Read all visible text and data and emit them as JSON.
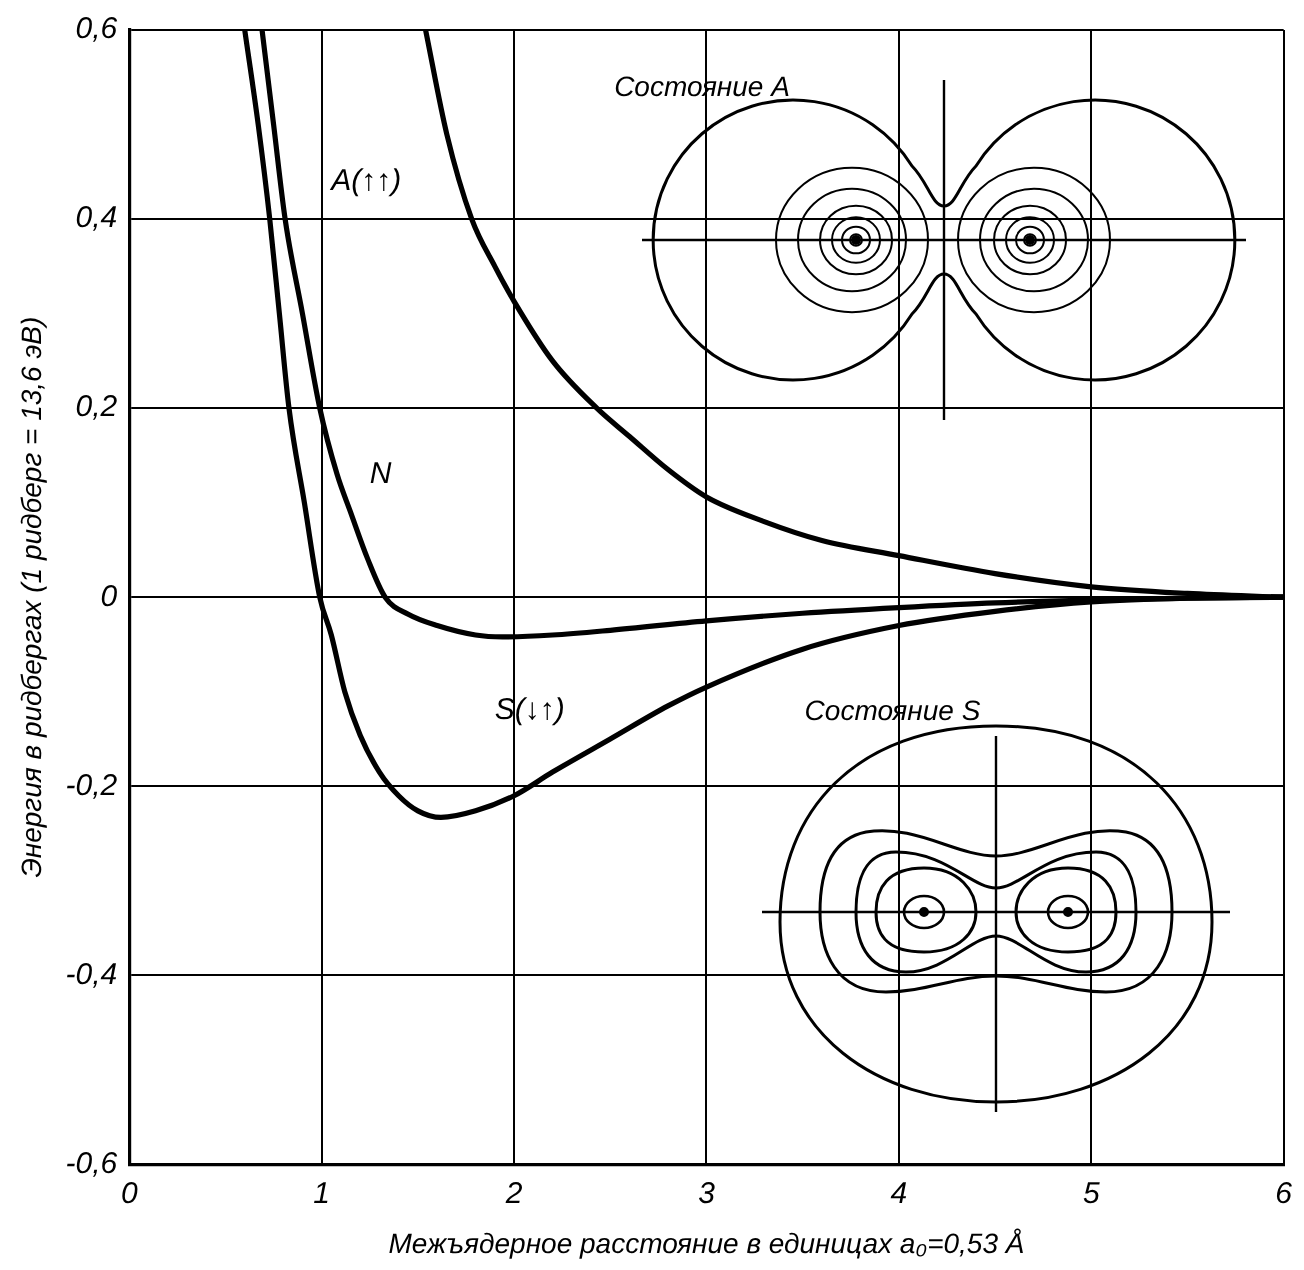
{
  "chart_data": {
    "type": "line",
    "xlabel": "Межъядерное расстояние в единицах a₀=0,53 Å",
    "ylabel": "Энергия в ридбергах (1 ридберг = 13,6 эВ)",
    "xlim": [
      0,
      6
    ],
    "xticks": [
      0,
      1,
      2,
      3,
      4,
      5,
      6
    ],
    "ylim": [
      -0.6,
      0.6
    ],
    "yticks": [
      {
        "value": -0.6,
        "label": "-0,6"
      },
      {
        "value": -0.4,
        "label": "-0,4"
      },
      {
        "value": -0.2,
        "label": "-0,2"
      },
      0,
      {
        "value": 0.2,
        "label": "0,2"
      },
      {
        "value": 0.4,
        "label": "0,4"
      },
      {
        "value": 0.6,
        "label": "0,6"
      }
    ],
    "grid": true,
    "legend": false,
    "marker": "none",
    "line_style": "solid",
    "annotations": [
      "Состояние A",
      "Состояние S"
    ],
    "series": [
      {
        "name": "A(↑↑)",
        "color": "#000000",
        "x": [
          1.54,
          1.65,
          1.78,
          1.9,
          2,
          2.2,
          2.43,
          2.6,
          2.8,
          3,
          3.3,
          3.6,
          4,
          4.5,
          5,
          5.5,
          6
        ],
        "values": [
          0.6,
          0.49,
          0.4,
          0.35,
          0.313,
          0.25,
          0.2,
          0.17,
          0.135,
          0.106,
          0.08,
          0.06,
          0.044,
          0.025,
          0.011,
          0.004,
          0
        ]
      },
      {
        "name": "N",
        "color": "#000000",
        "x": [
          0.69,
          0.75,
          0.81,
          0.9,
          0.99,
          1.08,
          1.15,
          1.24,
          1.33,
          1.45,
          1.6,
          1.8,
          1.94,
          2.2,
          2.5,
          3,
          3.5,
          4,
          4.5,
          5,
          5.5,
          6
        ],
        "values": [
          0.6,
          0.5,
          0.4,
          0.3,
          0.2,
          0.13,
          0.09,
          0.04,
          0,
          -0.018,
          -0.03,
          -0.04,
          -0.042,
          -0.04,
          -0.035,
          -0.025,
          -0.017,
          -0.011,
          -0.006,
          -0.003,
          -0.001,
          0
        ]
      },
      {
        "name": "S(↓↑)",
        "color": "#000000",
        "x": [
          0.6,
          0.67,
          0.73,
          0.78,
          0.83,
          0.91,
          0.99,
          1.05,
          1.12,
          1.2,
          1.3,
          1.4,
          1.5,
          1.62,
          1.8,
          2,
          2.2,
          2.5,
          2.8,
          3,
          3.5,
          4,
          4.5,
          5,
          5.5,
          6
        ],
        "values": [
          0.6,
          0.5,
          0.4,
          0.3,
          0.2,
          0.1,
          0,
          -0.04,
          -0.1,
          -0.146,
          -0.185,
          -0.21,
          -0.226,
          -0.233,
          -0.226,
          -0.21,
          -0.185,
          -0.15,
          -0.115,
          -0.095,
          -0.055,
          -0.03,
          -0.015,
          -0.005,
          -0.001,
          0
        ]
      }
    ]
  }
}
